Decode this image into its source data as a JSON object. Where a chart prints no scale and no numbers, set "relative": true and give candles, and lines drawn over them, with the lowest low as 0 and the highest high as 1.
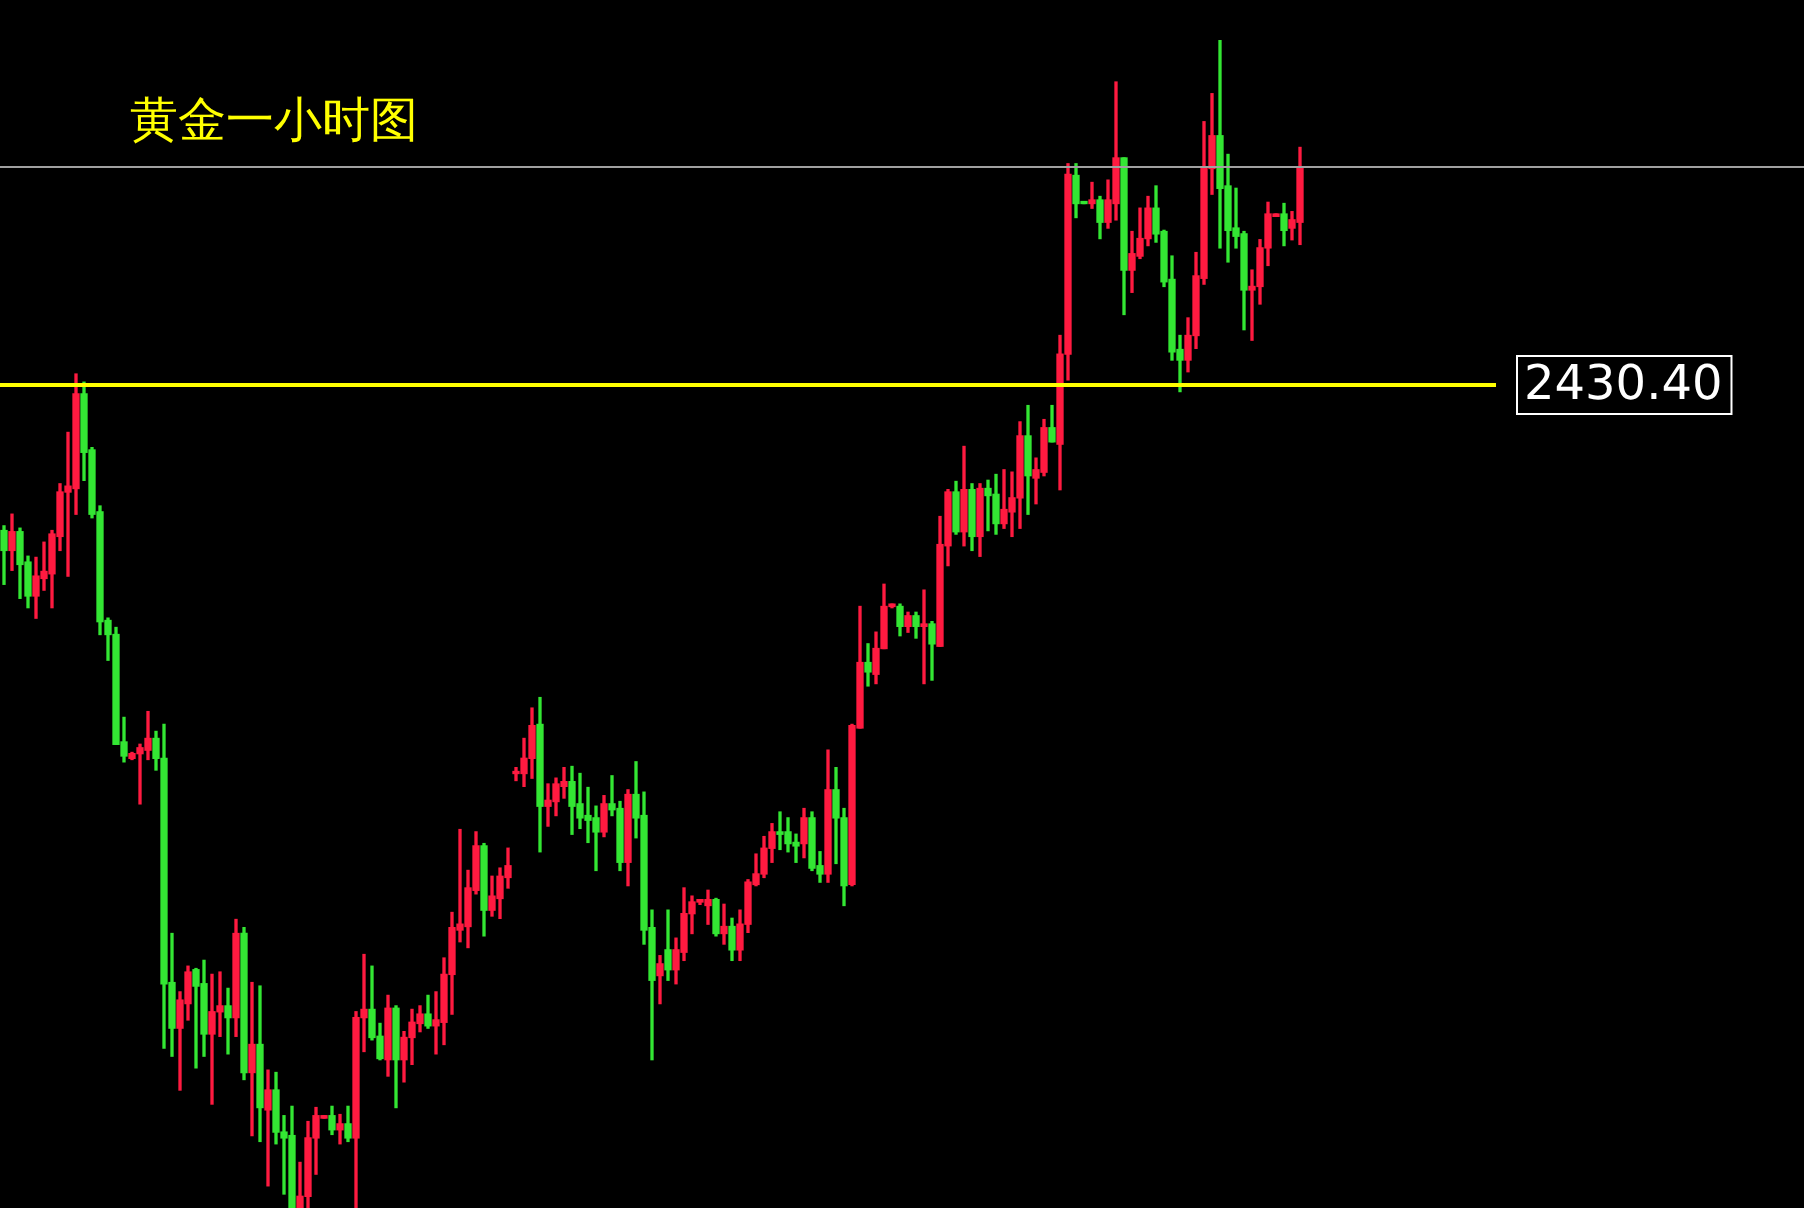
{
  "chart_data": {
    "type": "candlestick",
    "title": "黄金一小时图",
    "relative": true,
    "categories": [
      null,
      null,
      null,
      null,
      null,
      null,
      null,
      null,
      null,
      null,
      null,
      null,
      null,
      null,
      null,
      null,
      null,
      null,
      null,
      null,
      null,
      null,
      null,
      null,
      null,
      null,
      null,
      null,
      null,
      null,
      null,
      null,
      null,
      null,
      null,
      null,
      null,
      null,
      null,
      null,
      null,
      null,
      null,
      null,
      null,
      null,
      null,
      null,
      null,
      null,
      null,
      null,
      null,
      null,
      null,
      null,
      null,
      null,
      null,
      null,
      null,
      null,
      null,
      null,
      null,
      null,
      null,
      null,
      null,
      null,
      null,
      null,
      null,
      null,
      null,
      null,
      null,
      null,
      null,
      null,
      null,
      null,
      null,
      null,
      null,
      null,
      null,
      null,
      null,
      null,
      null,
      null,
      null,
      null,
      null,
      null,
      null,
      null,
      null,
      null,
      null,
      null,
      null,
      null,
      null,
      null,
      null,
      null,
      null,
      null,
      null,
      null,
      null,
      null,
      null,
      null,
      null,
      null,
      null,
      null,
      null,
      null,
      null,
      null,
      null,
      null,
      null,
      null,
      null,
      null,
      null,
      null,
      null,
      null,
      null,
      null,
      null,
      null,
      null,
      null,
      null,
      null,
      null,
      null,
      null,
      null,
      null,
      null,
      null,
      null,
      null,
      null,
      null,
      null,
      null,
      null,
      null,
      null,
      null,
      null,
      null,
      null,
      null
    ],
    "ohlc": [
      [
        0.58,
        0.584,
        0.534,
        0.563
      ],
      [
        0.563,
        0.594,
        0.546,
        0.579
      ],
      [
        0.579,
        0.582,
        0.522,
        0.551
      ],
      [
        0.553,
        0.558,
        0.514,
        0.524
      ],
      [
        0.524,
        0.557,
        0.505,
        0.541
      ],
      [
        0.539,
        0.57,
        0.529,
        0.545
      ],
      [
        0.543,
        0.58,
        0.514,
        0.577
      ],
      [
        0.575,
        0.62,
        0.563,
        0.613
      ],
      [
        0.613,
        0.664,
        0.541,
        0.618
      ],
      [
        0.616,
        0.714,
        0.594,
        0.697
      ],
      [
        0.697,
        0.707,
        0.623,
        0.647
      ],
      [
        0.649,
        0.651,
        0.591,
        0.594
      ],
      [
        0.596,
        0.601,
        0.491,
        0.502
      ],
      [
        0.503,
        0.505,
        0.469,
        0.491
      ],
      [
        0.491,
        0.497,
        0.397,
        0.397
      ],
      [
        0.399,
        0.42,
        0.382,
        0.387
      ],
      [
        0.385,
        0.39,
        0.384,
        0.389
      ],
      [
        0.389,
        0.397,
        0.346,
        0.394
      ],
      [
        0.392,
        0.425,
        0.384,
        0.402
      ],
      [
        0.402,
        0.408,
        0.375,
        0.385
      ],
      [
        0.385,
        0.414,
        0.137,
        0.192
      ],
      [
        0.193,
        0.235,
        0.13,
        0.154
      ],
      [
        0.154,
        0.185,
        0.101,
        0.178
      ],
      [
        0.175,
        0.207,
        0.161,
        0.202
      ],
      [
        0.204,
        0.205,
        0.12,
        0.19
      ],
      [
        0.192,
        0.212,
        0.13,
        0.149
      ],
      [
        0.149,
        0.2,
        0.089,
        0.168
      ],
      [
        0.168,
        0.202,
        0.147,
        0.173
      ],
      [
        0.173,
        0.188,
        0.132,
        0.163
      ],
      [
        0.163,
        0.247,
        0.147,
        0.235
      ],
      [
        0.235,
        0.24,
        0.11,
        0.116
      ],
      [
        0.116,
        0.193,
        0.062,
        0.14
      ],
      [
        0.14,
        0.19,
        0.057,
        0.086
      ],
      [
        0.084,
        0.118,
        0.019,
        0.101
      ],
      [
        0.101,
        0.116,
        0.055,
        0.065
      ],
      [
        0.065,
        0.079,
        0.012,
        0.06
      ],
      [
        0.062,
        0.087,
        0,
        0
      ],
      [
        0,
        0.039,
        0,
        0.01
      ],
      [
        0.01,
        0.074,
        0,
        0.06
      ],
      [
        0.06,
        0.086,
        0.029,
        0.079
      ],
      [
        0.077,
        0.079,
        0.077,
        0.079
      ],
      [
        0.079,
        0.087,
        0.063,
        0.067
      ],
      [
        0.067,
        0.08,
        0.055,
        0.072
      ],
      [
        0.072,
        0.087,
        0.057,
        0.06
      ],
      [
        0.06,
        0.168,
        0,
        0.163
      ],
      [
        0.163,
        0.217,
        0.134,
        0.17
      ],
      [
        0.17,
        0.207,
        0.144,
        0.146
      ],
      [
        0.147,
        0.158,
        0.127,
        0.128
      ],
      [
        0.127,
        0.182,
        0.113,
        0.171
      ],
      [
        0.171,
        0.173,
        0.086,
        0.127
      ],
      [
        0.127,
        0.151,
        0.108,
        0.146
      ],
      [
        0.146,
        0.17,
        0.123,
        0.159
      ],
      [
        0.158,
        0.173,
        0.151,
        0.166
      ],
      [
        0.166,
        0.182,
        0.154,
        0.156
      ],
      [
        0.156,
        0.185,
        0.132,
        0.161
      ],
      [
        0.159,
        0.214,
        0.14,
        0.2
      ],
      [
        0.2,
        0.253,
        0.166,
        0.24
      ],
      [
        0.238,
        0.324,
        0.228,
        0.243
      ],
      [
        0.241,
        0.289,
        0.223,
        0.274
      ],
      [
        0.272,
        0.322,
        0.269,
        0.31
      ],
      [
        0.31,
        0.312,
        0.233,
        0.255
      ],
      [
        0.255,
        0.284,
        0.25,
        0.267
      ],
      [
        0.265,
        0.291,
        0.248,
        0.284
      ],
      [
        0.283,
        0.308,
        0.274,
        0.293
      ],
      [
        0.372,
        0.377,
        0.366,
        0.373
      ],
      [
        0.372,
        0.402,
        0.361,
        0.385
      ],
      [
        0.385,
        0.428,
        0.368,
        0.413
      ],
      [
        0.414,
        0.437,
        0.305,
        0.344
      ],
      [
        0.344,
        0.363,
        0.327,
        0.349
      ],
      [
        0.348,
        0.368,
        0.336,
        0.363
      ],
      [
        0.361,
        0.377,
        0.351,
        0.365
      ],
      [
        0.365,
        0.378,
        0.32,
        0.344
      ],
      [
        0.346,
        0.372,
        0.325,
        0.334
      ],
      [
        0.336,
        0.36,
        0.313,
        0.332
      ],
      [
        0.334,
        0.344,
        0.289,
        0.322
      ],
      [
        0.322,
        0.353,
        0.318,
        0.346
      ],
      [
        0.346,
        0.37,
        0.336,
        0.341
      ],
      [
        0.342,
        0.348,
        0.289,
        0.296
      ],
      [
        0.296,
        0.358,
        0.276,
        0.354
      ],
      [
        0.354,
        0.382,
        0.317,
        0.334
      ],
      [
        0.336,
        0.356,
        0.226,
        0.238
      ],
      [
        0.24,
        0.255,
        0.127,
        0.195
      ],
      [
        0.199,
        0.216,
        0.175,
        0.209
      ],
      [
        0.221,
        0.255,
        0.195,
        0.204
      ],
      [
        0.204,
        0.231,
        0.192,
        0.221
      ],
      [
        0.219,
        0.274,
        0.212,
        0.252
      ],
      [
        0.252,
        0.267,
        0.235,
        0.262
      ],
      [
        0.262,
        0.264,
        0.26,
        0.264
      ],
      [
        0.259,
        0.272,
        0.243,
        0.264
      ],
      [
        0.264,
        0.265,
        0.233,
        0.235
      ],
      [
        0.235,
        0.26,
        0.226,
        0.241
      ],
      [
        0.241,
        0.248,
        0.212,
        0.221
      ],
      [
        0.221,
        0.255,
        0.212,
        0.243
      ],
      [
        0.243,
        0.281,
        0.236,
        0.279
      ],
      [
        0.277,
        0.303,
        0.276,
        0.286
      ],
      [
        0.286,
        0.318,
        0.283,
        0.308
      ],
      [
        0.308,
        0.329,
        0.296,
        0.322
      ],
      [
        0.322,
        0.339,
        0.307,
        0.32
      ],
      [
        0.322,
        0.334,
        0.305,
        0.312
      ],
      [
        0.313,
        0.32,
        0.296,
        0.31
      ],
      [
        0.312,
        0.342,
        0.3,
        0.334
      ],
      [
        0.334,
        0.339,
        0.289,
        0.291
      ],
      [
        0.293,
        0.305,
        0.279,
        0.286
      ],
      [
        0.286,
        0.392,
        0.279,
        0.358
      ],
      [
        0.358,
        0.377,
        0.295,
        0.334
      ],
      [
        0.334,
        0.342,
        0.259,
        0.276
      ],
      [
        0.277,
        0.414,
        0.276,
        0.413
      ],
      [
        0.411,
        0.515,
        0.411,
        0.467
      ],
      [
        0.467,
        0.483,
        0.447,
        0.459
      ],
      [
        0.457,
        0.493,
        0.449,
        0.479
      ],
      [
        0.479,
        0.534,
        0.479,
        0.515
      ],
      [
        0.515,
        0.517,
        0.514,
        0.517
      ],
      [
        0.515,
        0.517,
        0.49,
        0.498
      ],
      [
        0.498,
        0.51,
        0.493,
        0.507
      ],
      [
        0.507,
        0.51,
        0.488,
        0.498
      ],
      [
        0.498,
        0.529,
        0.449,
        0.5
      ],
      [
        0.5,
        0.502,
        0.452,
        0.483
      ],
      [
        0.481,
        0.592,
        0.481,
        0.568
      ],
      [
        0.567,
        0.615,
        0.55,
        0.613
      ],
      [
        0.613,
        0.622,
        0.577,
        0.579
      ],
      [
        0.579,
        0.652,
        0.567,
        0.615
      ],
      [
        0.615,
        0.62,
        0.563,
        0.575
      ],
      [
        0.575,
        0.62,
        0.558,
        0.616
      ],
      [
        0.616,
        0.623,
        0.58,
        0.61
      ],
      [
        0.611,
        0.628,
        0.577,
        0.586
      ],
      [
        0.586,
        0.632,
        0.582,
        0.598
      ],
      [
        0.596,
        0.63,
        0.575,
        0.608
      ],
      [
        0.608,
        0.673,
        0.582,
        0.661
      ],
      [
        0.661,
        0.687,
        0.594,
        0.627
      ],
      [
        0.625,
        0.642,
        0.603,
        0.632
      ],
      [
        0.63,
        0.675,
        0.627,
        0.668
      ],
      [
        0.668,
        0.687,
        0.656,
        0.656
      ],
      [
        0.654,
        0.747,
        0.615,
        0.731
      ],
      [
        0.731,
        0.894,
        0.709,
        0.885
      ],
      [
        0.884,
        0.894,
        0.848,
        0.86
      ],
      [
        0.861,
        0.861,
        0.86,
        0.86
      ],
      [
        0.86,
        0.878,
        0.856,
        0.863
      ],
      [
        0.863,
        0.866,
        0.83,
        0.844
      ],
      [
        0.844,
        0.88,
        0.839,
        0.863
      ],
      [
        0.86,
        0.964,
        0.846,
        0.899
      ],
      [
        0.899,
        0.899,
        0.765,
        0.803
      ],
      [
        0.803,
        0.836,
        0.784,
        0.817
      ],
      [
        0.815,
        0.856,
        0.813,
        0.83
      ],
      [
        0.83,
        0.866,
        0.824,
        0.856
      ],
      [
        0.856,
        0.875,
        0.827,
        0.834
      ],
      [
        0.836,
        0.837,
        0.789,
        0.793
      ],
      [
        0.795,
        0.815,
        0.726,
        0.733
      ],
      [
        0.735,
        0.747,
        0.699,
        0.726
      ],
      [
        0.726,
        0.762,
        0.716,
        0.747
      ],
      [
        0.747,
        0.818,
        0.736,
        0.798
      ],
      [
        0.796,
        0.93,
        0.791,
        0.89
      ],
      [
        0.89,
        0.954,
        0.868,
        0.918
      ],
      [
        0.918,
        1,
        0.822,
        0.873
      ],
      [
        0.875,
        0.902,
        0.81,
        0.837
      ],
      [
        0.839,
        0.873,
        0.822,
        0.832
      ],
      [
        0.834,
        0.836,
        0.752,
        0.786
      ],
      [
        0.786,
        0.803,
        0.743,
        0.789
      ],
      [
        0.789,
        0.829,
        0.774,
        0.822
      ],
      [
        0.822,
        0.861,
        0.807,
        0.851
      ],
      [
        0.849,
        0.851,
        0.849,
        0.851
      ],
      [
        0.851,
        0.86,
        0.824,
        0.837
      ],
      [
        0.839,
        0.853,
        0.829,
        0.846
      ],
      [
        0.844,
        0.908,
        0.825,
        0.89
      ]
    ],
    "annotations": [
      "2430.40"
    ],
    "ref_lines": [
      {
        "axis": "y",
        "value": 0.705,
        "color": "#ffff00"
      },
      {
        "axis": "y",
        "value": 0.892,
        "color": "#a0a0a0"
      }
    ]
  }
}
